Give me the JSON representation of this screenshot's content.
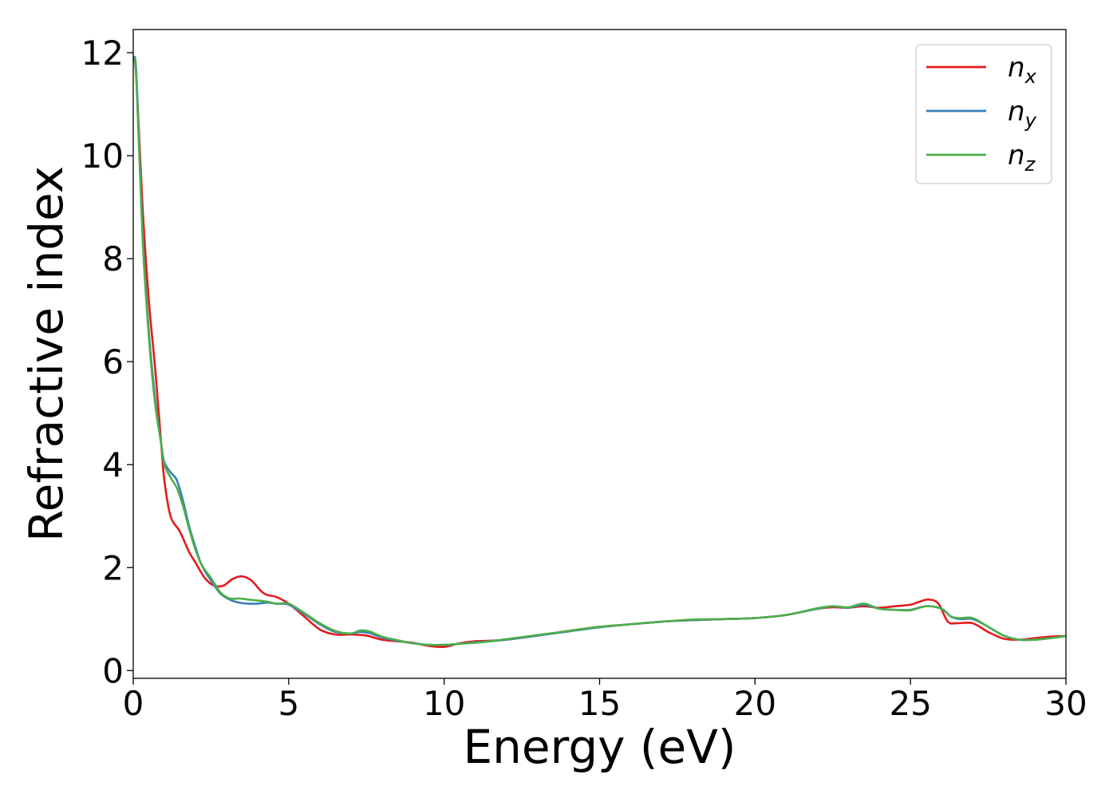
{
  "chart_data": {
    "type": "line",
    "title": "",
    "xlabel": "Energy (eV)",
    "ylabel": "Refractive index",
    "xlim": [
      0,
      30
    ],
    "ylim": [
      -0.15,
      12.45
    ],
    "xticks": [
      0,
      5,
      10,
      15,
      20,
      25,
      30
    ],
    "yticks": [
      0,
      2,
      4,
      6,
      8,
      10,
      12
    ],
    "grid": false,
    "legend_position": "top-right",
    "series": [
      {
        "name": "n_x",
        "label_base": "n",
        "label_sub": "x",
        "color": "#e41a1c",
        "x": [
          0,
          0.1,
          0.3,
          0.5,
          0.7,
          0.9,
          1.0,
          1.2,
          1.5,
          1.8,
          2.0,
          2.3,
          2.6,
          2.9,
          3.2,
          3.5,
          3.8,
          4.1,
          4.3,
          4.6,
          5.0,
          5.5,
          6.0,
          6.5,
          7.0,
          7.5,
          8.0,
          8.5,
          9.0,
          9.5,
          10.0,
          10.5,
          11.0,
          11.5,
          12.0,
          13.0,
          14.0,
          15.0,
          16.0,
          17.0,
          18.0,
          19.0,
          20.0,
          21.0,
          22.0,
          22.5,
          23.0,
          23.5,
          24.0,
          24.5,
          25.0,
          25.3,
          25.6,
          25.9,
          26.2,
          26.5,
          27.0,
          27.5,
          28.0,
          28.5,
          29.0,
          29.5,
          30.0
        ],
        "y": [
          11.9,
          11.5,
          9.0,
          7.2,
          5.9,
          4.4,
          3.7,
          3.0,
          2.7,
          2.3,
          2.1,
          1.8,
          1.65,
          1.65,
          1.78,
          1.83,
          1.75,
          1.55,
          1.47,
          1.43,
          1.3,
          1.05,
          0.8,
          0.7,
          0.7,
          0.68,
          0.6,
          0.57,
          0.54,
          0.48,
          0.46,
          0.53,
          0.57,
          0.58,
          0.6,
          0.68,
          0.77,
          0.85,
          0.9,
          0.95,
          0.98,
          1.0,
          1.02,
          1.08,
          1.2,
          1.23,
          1.22,
          1.25,
          1.22,
          1.25,
          1.28,
          1.34,
          1.38,
          1.3,
          0.95,
          0.92,
          0.92,
          0.75,
          0.62,
          0.6,
          0.63,
          0.66,
          0.67
        ]
      },
      {
        "name": "n_y",
        "label_base": "n",
        "label_sub": "y",
        "color": "#377eb8",
        "x": [
          0,
          0.1,
          0.3,
          0.5,
          0.7,
          0.9,
          1.0,
          1.2,
          1.4,
          1.6,
          1.8,
          2.0,
          2.2,
          2.5,
          2.8,
          3.1,
          3.4,
          3.7,
          4.0,
          4.3,
          4.6,
          5.0,
          5.5,
          6.0,
          6.5,
          7.0,
          7.3,
          7.6,
          8.0,
          8.5,
          9.0,
          9.5,
          10.0,
          10.5,
          11.0,
          11.5,
          12.0,
          13.0,
          14.0,
          15.0,
          16.0,
          17.0,
          18.0,
          19.0,
          20.0,
          21.0,
          22.0,
          22.5,
          23.0,
          23.5,
          24.0,
          24.5,
          25.0,
          25.5,
          26.0,
          26.3,
          26.6,
          27.0,
          27.5,
          28.0,
          28.5,
          29.0,
          29.5,
          30.0
        ],
        "y": [
          11.85,
          11.6,
          8.5,
          6.6,
          5.3,
          4.4,
          4.05,
          3.85,
          3.7,
          3.3,
          2.8,
          2.4,
          2.05,
          1.75,
          1.5,
          1.38,
          1.32,
          1.3,
          1.3,
          1.32,
          1.3,
          1.28,
          1.1,
          0.9,
          0.75,
          0.72,
          0.75,
          0.73,
          0.64,
          0.58,
          0.53,
          0.5,
          0.5,
          0.52,
          0.55,
          0.57,
          0.6,
          0.68,
          0.76,
          0.84,
          0.9,
          0.95,
          0.98,
          1.0,
          1.02,
          1.08,
          1.2,
          1.25,
          1.22,
          1.28,
          1.2,
          1.18,
          1.18,
          1.25,
          1.2,
          1.05,
          1.0,
          1.0,
          0.85,
          0.68,
          0.6,
          0.6,
          0.63,
          0.67
        ]
      },
      {
        "name": "n_z",
        "label_base": "n",
        "label_sub": "z",
        "color": "#4daf4a",
        "x": [
          0,
          0.1,
          0.3,
          0.5,
          0.7,
          0.9,
          1.0,
          1.2,
          1.4,
          1.6,
          1.8,
          2.0,
          2.2,
          2.5,
          2.8,
          3.1,
          3.4,
          3.7,
          4.0,
          4.3,
          4.6,
          5.0,
          5.5,
          6.0,
          6.5,
          7.0,
          7.3,
          7.6,
          8.0,
          8.5,
          9.0,
          9.5,
          10.0,
          10.5,
          11.0,
          11.5,
          12.0,
          13.0,
          14.0,
          15.0,
          16.0,
          17.0,
          18.0,
          19.0,
          20.0,
          21.0,
          22.0,
          22.5,
          23.0,
          23.5,
          24.0,
          24.5,
          25.0,
          25.5,
          26.0,
          26.3,
          26.6,
          27.0,
          27.5,
          28.0,
          28.5,
          29.0,
          29.5,
          30.0
        ],
        "y": [
          11.9,
          11.5,
          8.4,
          6.5,
          5.2,
          4.4,
          4.0,
          3.75,
          3.55,
          3.2,
          2.75,
          2.35,
          2.05,
          1.8,
          1.52,
          1.4,
          1.4,
          1.38,
          1.36,
          1.34,
          1.3,
          1.3,
          1.12,
          0.92,
          0.77,
          0.72,
          0.78,
          0.76,
          0.66,
          0.59,
          0.53,
          0.5,
          0.5,
          0.52,
          0.54,
          0.57,
          0.61,
          0.69,
          0.77,
          0.85,
          0.9,
          0.95,
          0.99,
          1.0,
          1.02,
          1.08,
          1.21,
          1.25,
          1.23,
          1.3,
          1.2,
          1.18,
          1.17,
          1.25,
          1.2,
          1.05,
          1.02,
          1.02,
          0.85,
          0.68,
          0.6,
          0.6,
          0.63,
          0.67
        ]
      }
    ]
  }
}
